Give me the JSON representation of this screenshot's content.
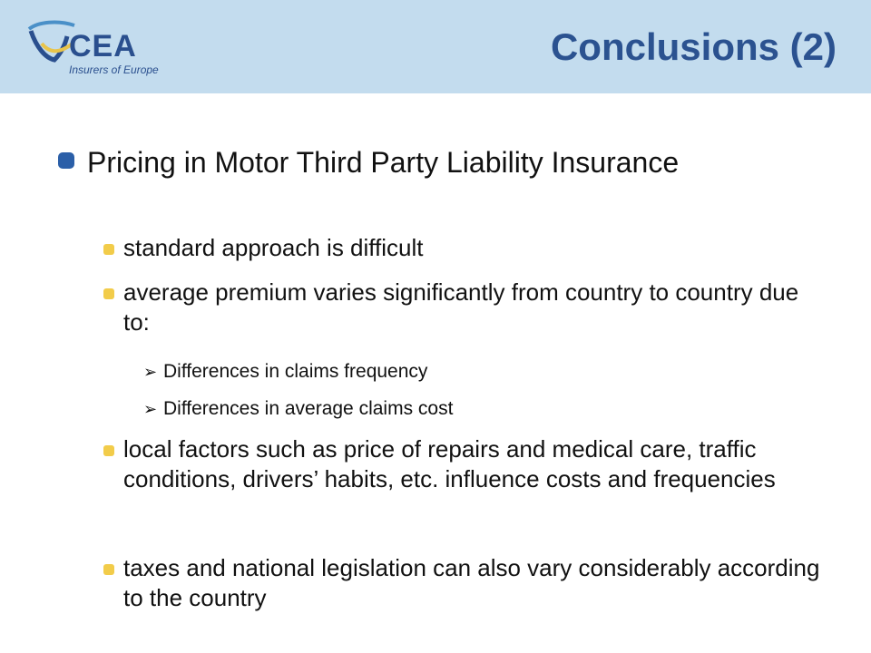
{
  "header": {
    "logo_name": "CEA",
    "logo_tagline": "Insurers of Europe",
    "title": "Conclusions (2)"
  },
  "content": {
    "main_point": "Pricing in Motor Third Party Liability Insurance",
    "sub_points": [
      "standard approach is difficult",
      "average premium varies significantly from country to country due to:",
      "local factors such as price of repairs and medical care, traffic conditions, drivers’ habits, etc. influence costs and frequencies",
      "taxes and national legislation can also vary considerably according to the country"
    ],
    "sub_sub_points": [
      "Differences in claims frequency",
      "Differences in average claims cost"
    ]
  },
  "colors": {
    "header_bg": "#c3dcee",
    "title": "#2b5290",
    "level1_bullet": "#2b5fa8",
    "level2_bullet": "#f2cc4a"
  },
  "icons": {
    "level3_bullet": "arrow-bullet-icon"
  }
}
